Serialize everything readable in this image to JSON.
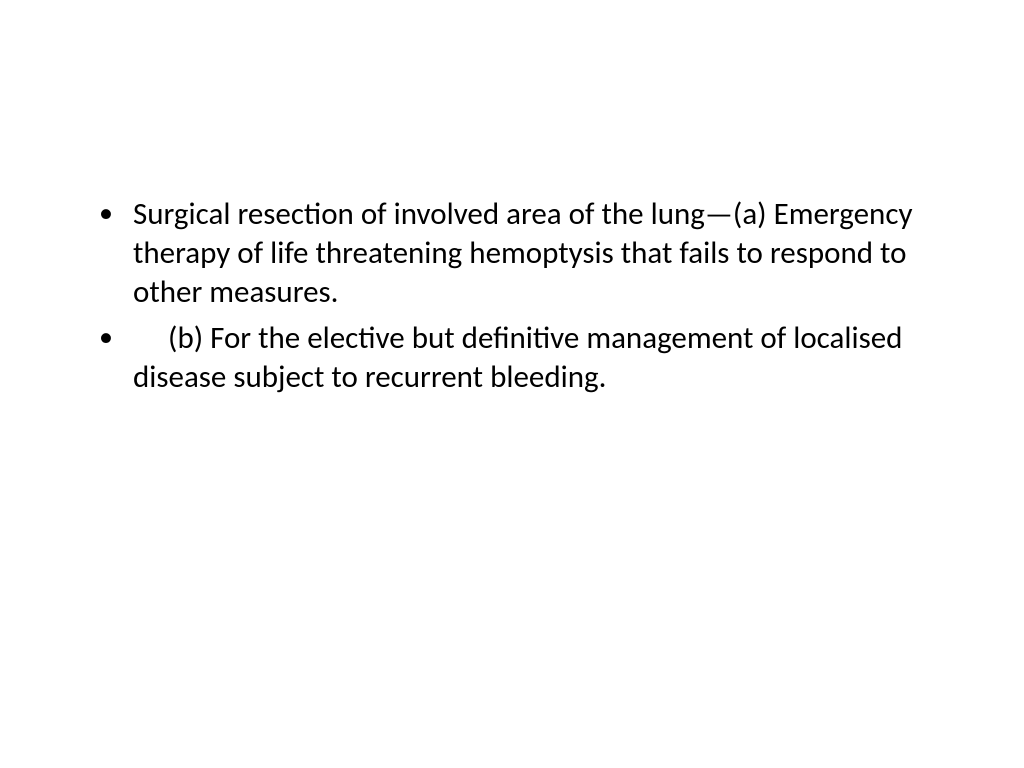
{
  "slide": {
    "background_color": "#ffffff",
    "text_color": "#000000",
    "font_family": "Calibri",
    "font_size_pt": 28,
    "bullets": [
      {
        "text": " Surgical resection of involved area of the lung—(a) Emergency therapy of life threatening hemoptysis that fails to respond to other measures."
      },
      {
        "text": "     (b) For the elective but definitive management of localised disease subject to recurrent bleeding."
      }
    ]
  }
}
